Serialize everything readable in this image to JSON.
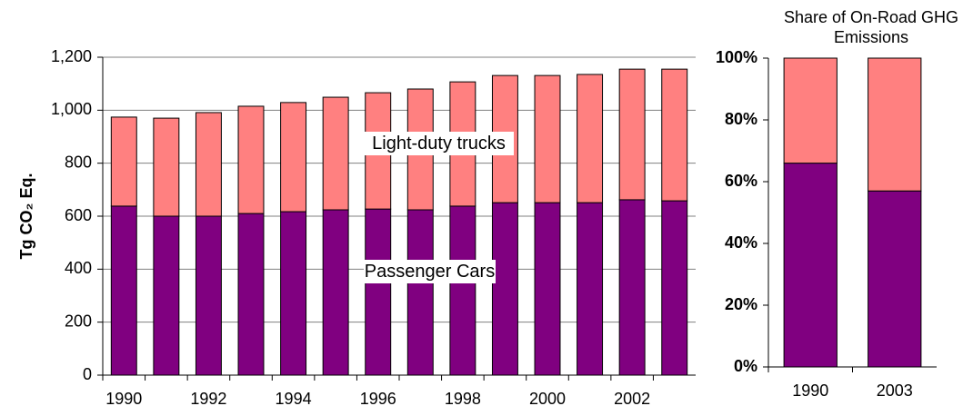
{
  "chart_data": [
    {
      "type": "bar",
      "stacked": true,
      "y_label": "Tg CO₂ Eq.",
      "categories": [
        "1990",
        null,
        "1992",
        null,
        "1994",
        null,
        "1996",
        null,
        "1998",
        null,
        "2000",
        null,
        "2002",
        null
      ],
      "series": [
        {
          "name": "Passenger Cars",
          "color": "#800080",
          "values": [
            638,
            600,
            600,
            610,
            617,
            624,
            627,
            624,
            638,
            651,
            651,
            651,
            662,
            658
          ]
        },
        {
          "name": "Light-duty trucks",
          "color": "#ff8080",
          "values": [
            336,
            370,
            391,
            405,
            412,
            425,
            439,
            456,
            469,
            480,
            480,
            484,
            493,
            497
          ]
        }
      ],
      "ylim": [
        0,
        1200
      ],
      "yticks": [
        0,
        200,
        400,
        600,
        800,
        {
          "value": 1000,
          "label": "1,000"
        },
        {
          "value": 1200,
          "label": "1,200"
        }
      ],
      "grid": true
    },
    {
      "type": "bar",
      "stacked": true,
      "title": "Share of On-Road GHG Emissions",
      "categories": [
        "1990",
        "2003"
      ],
      "series": [
        {
          "color": "#800080",
          "values": [
            66,
            57
          ]
        },
        {
          "color": "#ff8080",
          "values": [
            34,
            43
          ]
        }
      ],
      "ylim": [
        0,
        100
      ],
      "yticks": [
        {
          "value": 0,
          "label": "0%"
        },
        {
          "value": 20,
          "label": "20%"
        },
        {
          "value": 40,
          "label": "40%"
        },
        {
          "value": 60,
          "label": "60%"
        },
        {
          "value": 80,
          "label": "80%"
        },
        {
          "value": 100,
          "label": "100%"
        }
      ],
      "grid": false
    }
  ]
}
